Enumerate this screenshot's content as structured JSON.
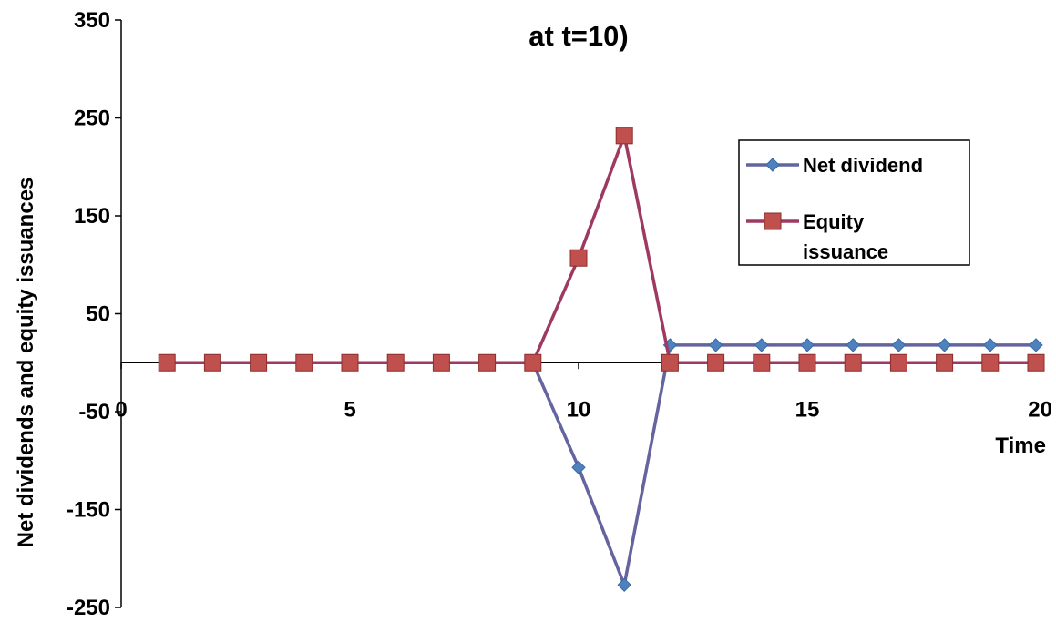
{
  "chart_data": {
    "type": "line",
    "title": "at t=10)",
    "xlabel": "Time",
    "ylabel": "Net dividends and equity issuances",
    "xlim": [
      0,
      20
    ],
    "ylim": [
      -250,
      350
    ],
    "x_ticks": [
      "0",
      "5",
      "10",
      "15",
      "20"
    ],
    "y_ticks": [
      "350",
      "250",
      "150",
      "50",
      "-50",
      "-150",
      "-250"
    ],
    "grid": false,
    "legend_position": "right",
    "x": [
      1,
      2,
      3,
      4,
      5,
      6,
      7,
      8,
      9,
      10,
      11,
      12,
      13,
      14,
      15,
      16,
      17,
      18,
      19,
      20
    ],
    "series": [
      {
        "name": "Net dividend",
        "color": "#4F81BD",
        "line_color": "#64649E",
        "marker": "diamond",
        "values": [
          0,
          0,
          0,
          0,
          0,
          0,
          0,
          0,
          0,
          -107,
          -227,
          18,
          18,
          18,
          18,
          18,
          18,
          18,
          18,
          18
        ]
      },
      {
        "name": "Equity issuance",
        "color": "#C0504D",
        "line_color": "#9E3A62",
        "marker": "square",
        "values": [
          0,
          0,
          0,
          0,
          0,
          0,
          0,
          0,
          0,
          107,
          232,
          0,
          0,
          0,
          0,
          0,
          0,
          0,
          0,
          0
        ]
      }
    ],
    "legend": {
      "entries": [
        {
          "lines": [
            "Net dividend"
          ]
        },
        {
          "lines": [
            "Equity",
            "issuance"
          ]
        }
      ]
    }
  }
}
